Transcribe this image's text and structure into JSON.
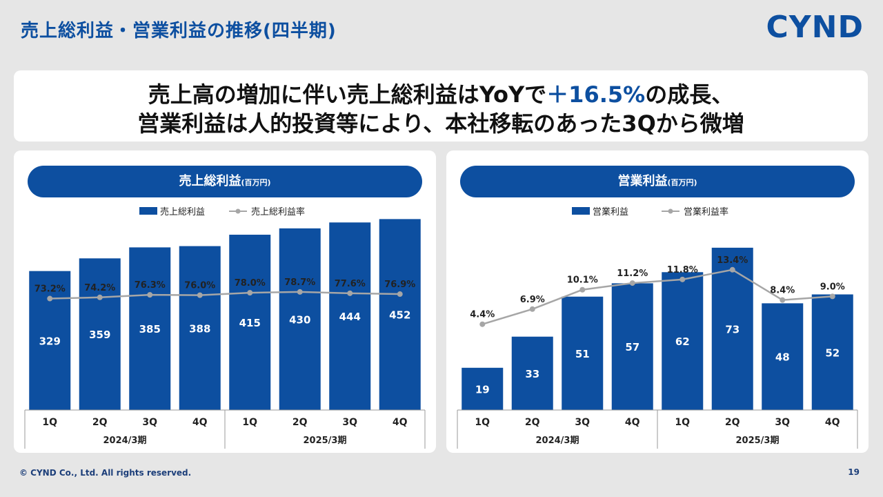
{
  "page": {
    "title": "売上総利益・営業利益の推移(四半期)",
    "logo": "CYND",
    "headline": {
      "line1_pre": "売上高の増加に伴い売上総利益はYoYで",
      "line1_accent": "＋16.5%",
      "line1_post": "の成長、",
      "line2": "営業利益は人的投資等により、本社移転のあった3Qから微増"
    },
    "footer": "© CYND Co., Ltd. All rights reserved.",
    "page_number": "19"
  },
  "colors": {
    "bar": "#0d4fa0",
    "line": "#a6a6a6",
    "accent": "#0d4fa0"
  },
  "chart_data": [
    {
      "type": "bar",
      "title": "売上総利益",
      "unit": "(百万円)",
      "legend": [
        "売上総利益",
        "売上総利益率"
      ],
      "categories": [
        "1Q",
        "2Q",
        "3Q",
        "4Q",
        "1Q",
        "2Q",
        "3Q",
        "4Q"
      ],
      "groups": [
        {
          "label": "2024/3期",
          "count": 4
        },
        {
          "label": "2025/3期",
          "count": 4
        }
      ],
      "series": [
        {
          "name": "売上総利益",
          "kind": "bar",
          "values": [
            329,
            359,
            385,
            388,
            415,
            430,
            444,
            452
          ]
        },
        {
          "name": "売上総利益率",
          "kind": "line",
          "values": [
            73.2,
            74.2,
            76.3,
            76.0,
            78.0,
            78.7,
            77.6,
            76.9
          ],
          "labels": [
            "73.2%",
            "74.2%",
            "76.3%",
            "76.0%",
            "78.0%",
            "78.7%",
            "77.6%",
            "76.9%"
          ]
        }
      ]
    },
    {
      "type": "bar",
      "title": "営業利益",
      "unit": "(百万円)",
      "legend": [
        "営業利益",
        "営業利益率"
      ],
      "categories": [
        "1Q",
        "2Q",
        "3Q",
        "4Q",
        "1Q",
        "2Q",
        "3Q",
        "4Q"
      ],
      "groups": [
        {
          "label": "2024/3期",
          "count": 4
        },
        {
          "label": "2025/3期",
          "count": 4
        }
      ],
      "series": [
        {
          "name": "営業利益",
          "kind": "bar",
          "values": [
            19,
            33,
            51,
            57,
            62,
            73,
            48,
            52
          ]
        },
        {
          "name": "営業利益率",
          "kind": "line",
          "values": [
            4.4,
            6.9,
            10.1,
            11.2,
            11.8,
            13.4,
            8.4,
            9.0
          ],
          "labels": [
            "4.4%",
            "6.9%",
            "10.1%",
            "11.2%",
            "11.8%",
            "13.4%",
            "8.4%",
            "9.0%"
          ]
        }
      ]
    }
  ]
}
